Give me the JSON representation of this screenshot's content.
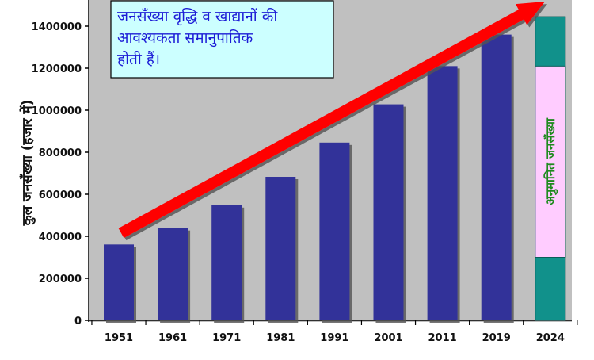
{
  "chart_data": {
    "type": "bar",
    "title": "",
    "xlabel": "",
    "ylabel": "कुल जनसँख्या (हजार में)",
    "ylim": [
      0,
      1450000
    ],
    "yticks": [
      0,
      200000,
      400000,
      600000,
      800000,
      1000000,
      1200000,
      1400000
    ],
    "grid": false,
    "categories": [
      "1951",
      "1961",
      "1971",
      "1981",
      "1991",
      "2001",
      "2011",
      "2019",
      "2024"
    ],
    "series": [
      {
        "values": [
          361000,
          439000,
          548000,
          683000,
          846000,
          1028000,
          1210000,
          1360000,
          null
        ],
        "color": "#333399"
      }
    ],
    "projection": {
      "category": "2024",
      "total": 1445000,
      "inner_low": 300000,
      "inner_high": 1210000,
      "label": "अनुमानित जनसँख्या",
      "outer_color": "#11918b",
      "inner_color": "#ffccff"
    },
    "annotation": {
      "lines": [
        "जनसँख्या वृद्धि व खाद्यानों की",
        "आवश्यकता समानुपातिक",
        "होती हैं।"
      ],
      "background": "#ccffff"
    },
    "trend_arrow_color": "#ff0000",
    "plot_background": "#c0c0c0"
  }
}
